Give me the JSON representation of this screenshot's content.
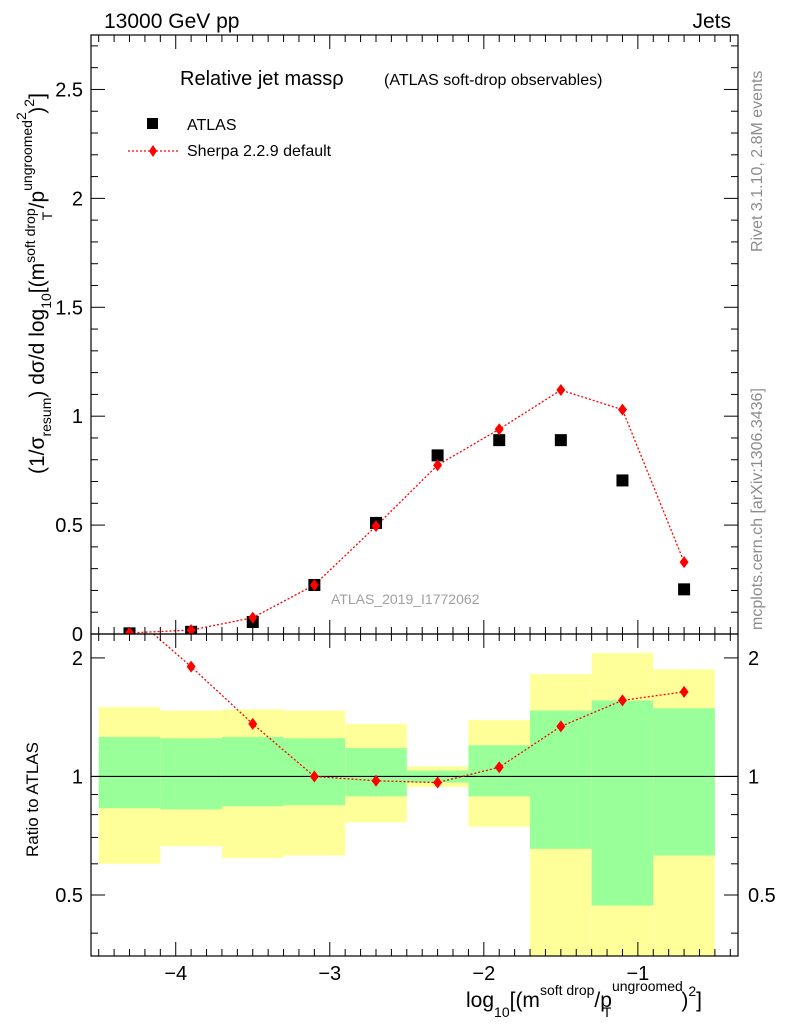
{
  "header": {
    "left": "13000 GeV pp",
    "right": "Jets"
  },
  "side_text": {
    "upper": "Rivet 3.1.10,  2.8M events",
    "lower": "mcplots.cern.ch [arXiv:1306.3436]"
  },
  "analysis_tag": "ATLAS_2019_I1772062",
  "chart_data": [
    {
      "type": "scatter",
      "panel": "main",
      "title": "Relative jet massρ",
      "subtitle": "(ATLAS soft-drop observables)",
      "ylabel": {
        "a": "(1/σ",
        "b": "resum",
        "c": ") dσ/d log",
        "d": "10",
        "e": "[(m",
        "f": "soft drop",
        "g": "/p",
        "h": "ungroomed",
        "i": "2",
        "j": "T",
        "k": ")",
        "l": "2",
        "m": "]"
      },
      "xlim": [
        -4.55,
        -0.35
      ],
      "ylim": [
        0,
        2.75
      ],
      "yticks": [
        {
          "v": 0,
          "label": "0"
        },
        {
          "v": 0.5,
          "label": "0.5"
        },
        {
          "v": 1,
          "label": "1"
        },
        {
          "v": 1.5,
          "label": "1.5"
        },
        {
          "v": 2,
          "label": "2"
        },
        {
          "v": 2.5,
          "label": "2.5"
        }
      ],
      "legend_position": "top-left",
      "series": [
        {
          "name": "ATLAS",
          "marker": "square",
          "color": "#000000",
          "x": [
            -4.3,
            -3.9,
            -3.5,
            -3.1,
            -2.7,
            -2.3,
            -1.9,
            -1.5,
            -1.1,
            -0.7
          ],
          "y": [
            0.003,
            0.01,
            0.055,
            0.225,
            0.51,
            0.82,
            0.89,
            0.89,
            0.705,
            0.205
          ]
        },
        {
          "name": "Sherpa 2.2.9 default",
          "marker": "diamond",
          "line": "dotted",
          "color": "#ff0000",
          "x": [
            -4.3,
            -3.9,
            -3.5,
            -3.1,
            -2.7,
            -2.3,
            -1.9,
            -1.5,
            -1.1,
            -0.7
          ],
          "y": [
            0.005,
            0.018,
            0.075,
            0.225,
            0.495,
            0.775,
            0.94,
            1.12,
            1.03,
            0.33
          ]
        }
      ]
    },
    {
      "type": "line",
      "panel": "ratio",
      "ylabel": "Ratio to ATLAS",
      "xlabel": {
        "a": "log",
        "b": "10",
        "c": "[(m",
        "d": "soft drop",
        "e": "/p",
        "f": "ungroomed",
        "g": "T",
        "h": ")",
        "i": "2",
        "j": "]"
      },
      "xlim": [
        -4.55,
        -0.35
      ],
      "ylim": [
        0.35,
        2.3
      ],
      "xticks": [
        {
          "v": -4,
          "label": "−4"
        },
        {
          "v": -3,
          "label": "−3"
        },
        {
          "v": -2,
          "label": "−2"
        },
        {
          "v": -1,
          "label": "−1"
        }
      ],
      "yticks": [
        {
          "v": 0.5,
          "label": "0.5"
        },
        {
          "v": 1,
          "label": "1"
        },
        {
          "v": 2,
          "label": "2"
        }
      ],
      "bins": [
        -4.5,
        -4.1,
        -3.7,
        -3.3,
        -2.9,
        -2.5,
        -2.1,
        -1.7,
        -1.3,
        -0.9,
        -0.5
      ],
      "band_outer_lo": [
        0.6,
        0.665,
        0.62,
        0.63,
        0.765,
        0.94,
        0.745,
        0.35,
        0.35,
        0.35
      ],
      "band_outer_hi": [
        1.5,
        1.47,
        1.48,
        1.47,
        1.36,
        1.06,
        1.39,
        1.82,
        2.06,
        1.87
      ],
      "band_inner_lo": [
        0.83,
        0.825,
        0.84,
        0.845,
        0.89,
        0.965,
        0.89,
        0.655,
        0.47,
        0.63
      ],
      "band_inner_hi": [
        1.26,
        1.25,
        1.26,
        1.25,
        1.18,
        1.035,
        1.2,
        1.47,
        1.56,
        1.49
      ],
      "colors": {
        "outer": "#ffff99",
        "inner": "#99ff99"
      },
      "reference": 1,
      "series": [
        {
          "name": "Sherpa 2.2.9 default",
          "color": "#ff0000",
          "x": [
            -4.3,
            -3.9,
            -3.5,
            -3.1,
            -2.7,
            -2.3,
            -1.9,
            -1.5,
            -1.1,
            -0.7
          ],
          "y": [
            2.6,
            1.9,
            1.36,
            1.0,
            0.975,
            0.965,
            1.055,
            1.34,
            1.56,
            1.64
          ]
        }
      ]
    }
  ]
}
